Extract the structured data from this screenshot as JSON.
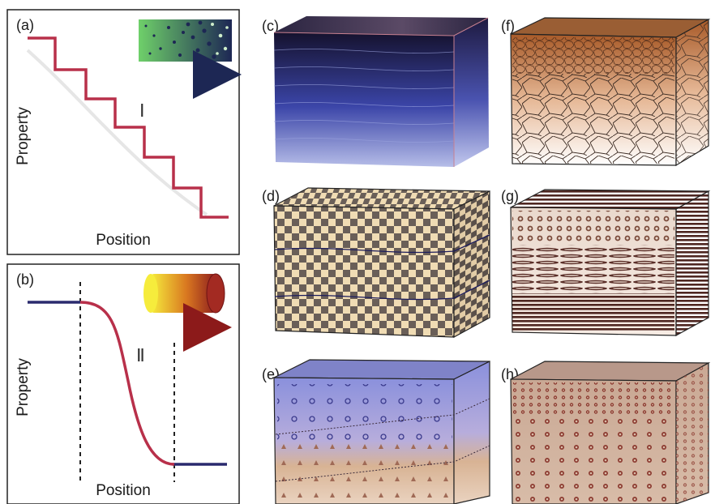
{
  "panels": {
    "a": {
      "label": "(a)",
      "xlabel": "Position",
      "ylabel": "Property",
      "roman": "Ⅰ"
    },
    "b": {
      "label": "(b)",
      "xlabel": "Position",
      "ylabel": "Property",
      "roman": "Ⅱ"
    },
    "c": {
      "label": "(c)"
    },
    "d": {
      "label": "(d)"
    },
    "e": {
      "label": "(e)"
    },
    "f": {
      "label": "(f)"
    },
    "g": {
      "label": "(g)"
    },
    "h": {
      "label": "(h)"
    }
  },
  "colors": {
    "step_line": "#b8304a",
    "flat_line": "#2a2a6e",
    "cube_c_top": "#1c1838",
    "cube_c_bottom": "#aab3e0",
    "checker_dark": "#6a5f58",
    "checker_light": "#f0dcb4",
    "cube_e_top": "#8c93dc",
    "cube_e_bottom": "#d9b89a",
    "cell_top": "#b0683a",
    "cell_bottom": "#ffffff",
    "fiber_dark": "#5a2e28",
    "cube_h": "#d3b6a0"
  },
  "icons": {
    "a_inset": "gradient-porosity-swatch",
    "b_inset": "gradient-cylinder",
    "arrows": "direction-arrow"
  }
}
